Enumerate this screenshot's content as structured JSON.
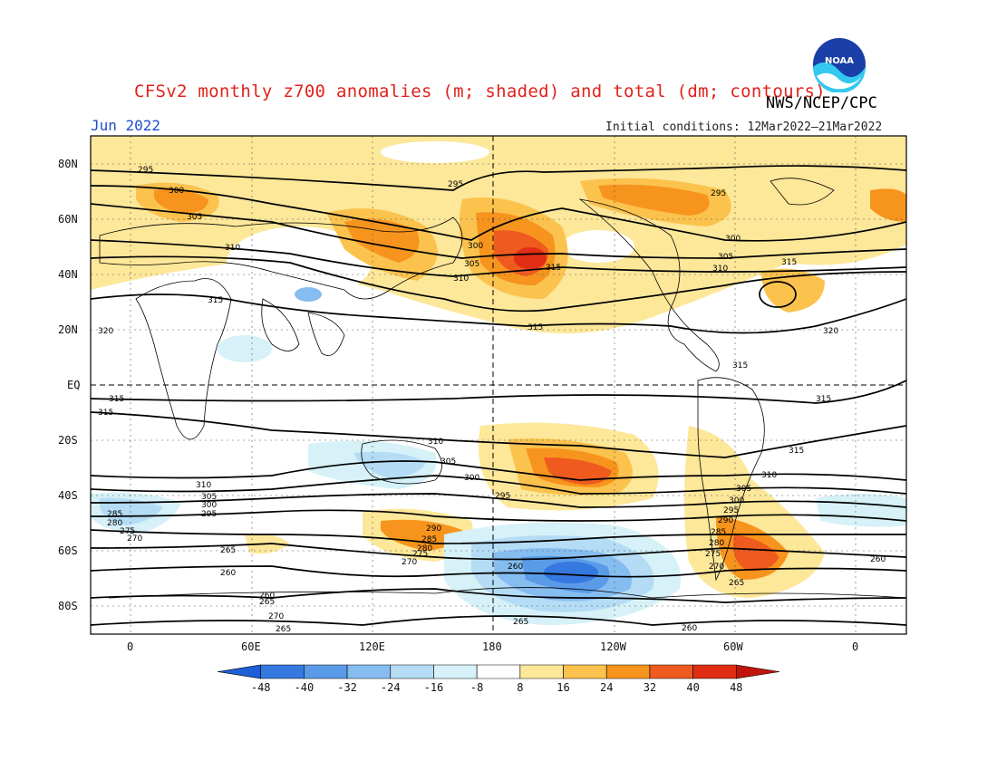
{
  "title": "CFSv2 monthly z700 anomalies (m; shaded) and total (dm; contours)",
  "agency": "NWS/NCEP/CPC",
  "month": "Jun 2022",
  "initial_conditions": "Initial conditions: 12Mar2022–21Mar2022",
  "logo_text": "NOAA",
  "lat_ticks": [
    "80N",
    "60N",
    "40N",
    "20N",
    "EQ",
    "20S",
    "40S",
    "60S",
    "80S"
  ],
  "lon_ticks": [
    "0",
    "60E",
    "120E",
    "180",
    "120W",
    "60W",
    "0"
  ],
  "colorbar": {
    "labels": [
      "-48",
      "-40",
      "-32",
      "-24",
      "-16",
      "-8",
      "8",
      "16",
      "24",
      "32",
      "40",
      "48"
    ],
    "colors": [
      "#1e5fd6",
      "#3578e0",
      "#5a9be8",
      "#86bdf0",
      "#b4dcf5",
      "#d6f1f7",
      "#ffffff",
      "#fde799",
      "#fbc24e",
      "#f7941d",
      "#ef5a1e",
      "#e02d14",
      "#c0140c"
    ]
  },
  "contour_labels": [
    "295",
    "300",
    "305",
    "310",
    "315",
    "320",
    "260",
    "265",
    "270",
    "275",
    "280",
    "285",
    "290"
  ]
}
